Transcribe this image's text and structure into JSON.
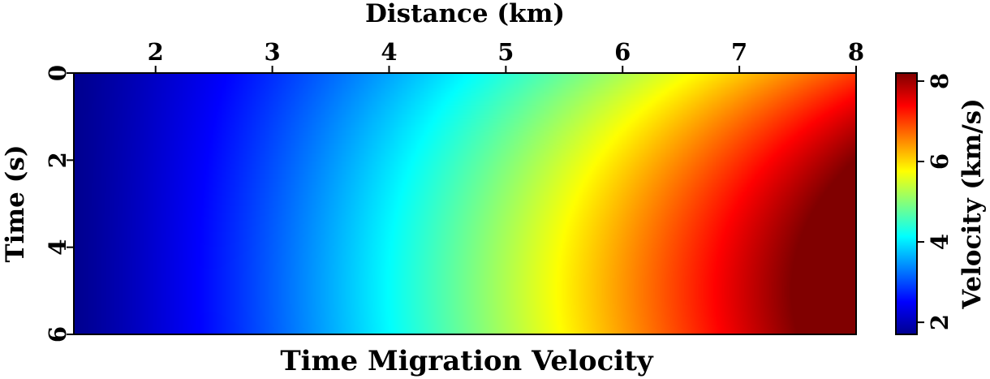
{
  "chart_data": {
    "type": "heatmap",
    "title": "Time Migration Velocity",
    "xlabel": "Distance (km)",
    "ylabel": "Time (s)",
    "colorbar_label": "Velocity (km/s)",
    "xlim": [
      1.3,
      8.0
    ],
    "ylim": [
      0,
      6
    ],
    "y_inverted": true,
    "x_ticks": [
      2,
      3,
      4,
      5,
      6,
      7,
      8
    ],
    "y_ticks": [
      0,
      2,
      4,
      6
    ],
    "colorbar_range": [
      1.7,
      8.2
    ],
    "colorbar_ticks": [
      2,
      4,
      6,
      8
    ],
    "colormap": "jet",
    "grid": false,
    "field_samples": [
      {
        "x": 1.3,
        "t": 0.0,
        "v": 1.7
      },
      {
        "x": 1.3,
        "t": 6.0,
        "v": 2.1
      },
      {
        "x": 3.0,
        "t": 0.0,
        "v": 2.6
      },
      {
        "x": 3.6,
        "t": 6.0,
        "v": 3.8
      },
      {
        "x": 4.3,
        "t": 0.0,
        "v": 3.9
      },
      {
        "x": 5.4,
        "t": 6.0,
        "v": 5.5
      },
      {
        "x": 7.0,
        "t": 0.0,
        "v": 5.6
      },
      {
        "x": 8.0,
        "t": 0.0,
        "v": 6.3
      },
      {
        "x": 8.0,
        "t": 5.0,
        "v": 8.2
      }
    ]
  }
}
